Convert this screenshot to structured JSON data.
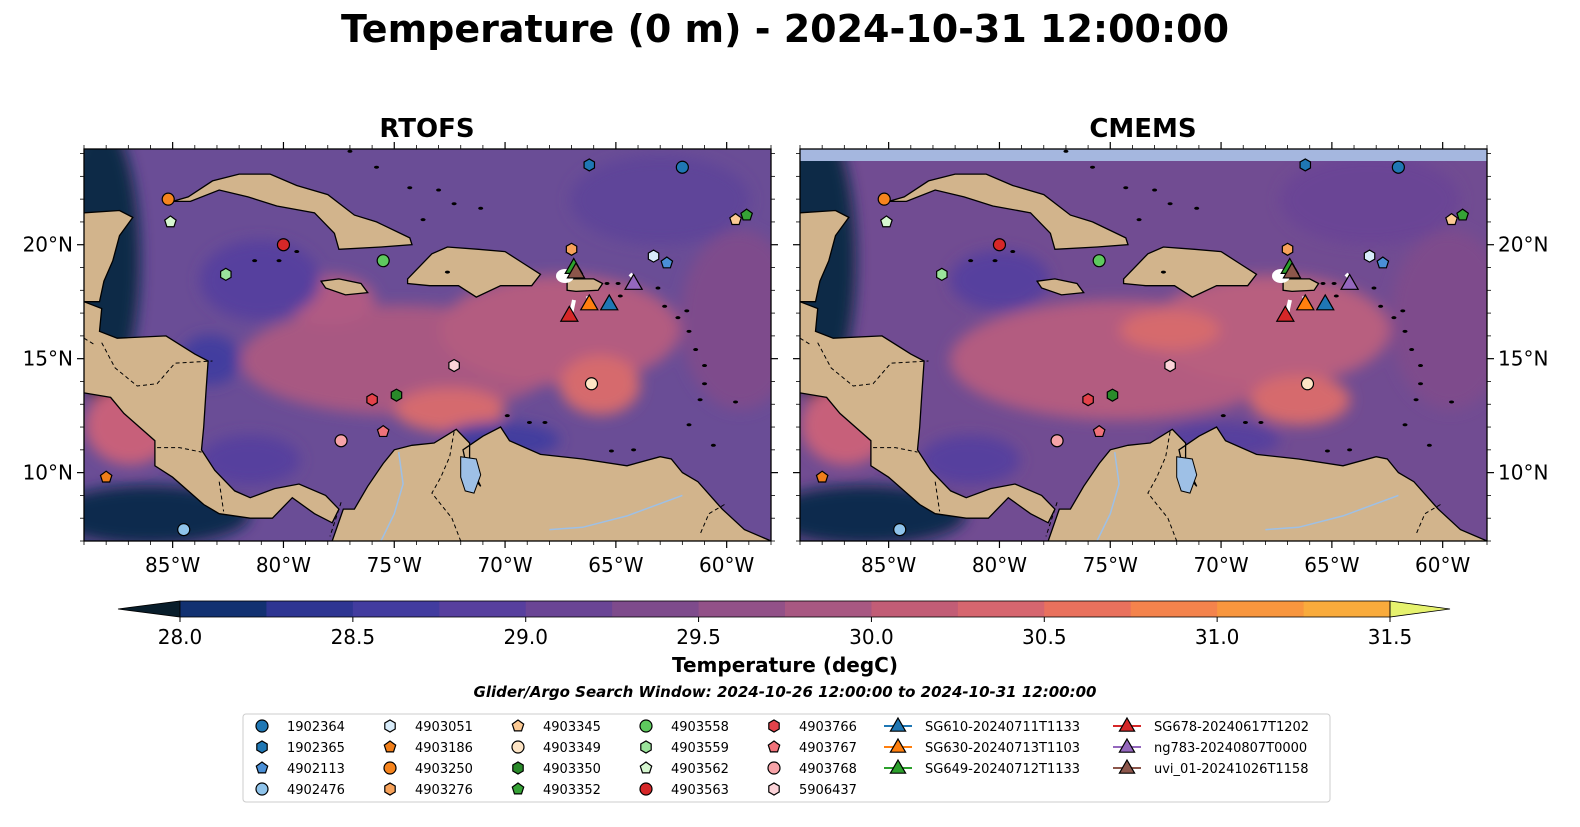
{
  "figure": {
    "title": "Temperature (0 m) - 2024-10-31 12:00:00",
    "colorbar_label": "Temperature (degC)",
    "search_window": "Glider/Argo Search Window: 2024-10-26 12:00:00 to 2024-10-31 12:00:00"
  },
  "chart_data": {
    "type": "map",
    "panels": [
      {
        "title": "RTOFS",
        "ocean_color": "#6a4d96"
      },
      {
        "title": "CMEMS",
        "ocean_color": "#714c92",
        "top_band_color": "#a5b7df"
      }
    ],
    "xlim": [
      -89,
      -58
    ],
    "ylim": [
      7,
      24.2
    ],
    "xticks": [
      -85,
      -80,
      -75,
      -70,
      -65,
      -60
    ],
    "xtick_labels": [
      "85°W",
      "80°W",
      "75°W",
      "70°W",
      "65°W",
      "60°W"
    ],
    "yticks": [
      10,
      15,
      20
    ],
    "ytick_labels": [
      "10°N",
      "15°N",
      "20°N"
    ],
    "colorbar": {
      "min": 28.0,
      "max": 31.5,
      "step": 0.25,
      "ticks": [
        28.0,
        28.5,
        29.0,
        29.5,
        30.0,
        30.5,
        31.0,
        31.5
      ],
      "tick_labels": [
        "28.0",
        "28.5",
        "29.0",
        "29.5",
        "30.0",
        "30.5",
        "31.0",
        "31.5"
      ],
      "colors": [
        "#072437",
        "#0b2d5a",
        "#123171",
        "#2e3592",
        "#423c9f",
        "#573f9e",
        "#6a4595",
        "#7e4b8c",
        "#925188",
        "#a85882",
        "#c25d76",
        "#d6666f",
        "#e9715d",
        "#f4834c",
        "#f8963e",
        "#f9ab3c",
        "#f5c748",
        "#ebe563"
      ],
      "extend_min": "#081d2b",
      "extend_max": "#e6f26e"
    },
    "land_color": "#d2b48c",
    "lake_color": "#9ec0e6",
    "floats": [
      {
        "id": "1902364",
        "marker": "circle",
        "color": "#1f77b4",
        "lon": -62.0,
        "lat": 23.4
      },
      {
        "id": "1902365",
        "marker": "hexagon",
        "color": "#1f77b4",
        "lon": -66.2,
        "lat": 23.5
      },
      {
        "id": "4902113",
        "marker": "pentagon",
        "color": "#4a8fd6",
        "lon": -62.7,
        "lat": 19.2
      },
      {
        "id": "4902476",
        "marker": "circle",
        "color": "#8fc3ea",
        "lon": -84.5,
        "lat": 7.5
      },
      {
        "id": "4903051",
        "marker": "hexagon",
        "color": "#d8ecfa",
        "lon": -63.3,
        "lat": 19.5
      },
      {
        "id": "4903186",
        "marker": "pentagon",
        "color": "#f07e19",
        "lon": -88.0,
        "lat": 9.8
      },
      {
        "id": "4903250",
        "marker": "circle",
        "color": "#f6841d",
        "lon": -85.2,
        "lat": 22.0
      },
      {
        "id": "4903276",
        "marker": "hexagon",
        "color": "#f7a25a",
        "lon": -67.0,
        "lat": 19.8
      },
      {
        "id": "4903345",
        "marker": "pentagon",
        "color": "#fcca94",
        "lon": -59.6,
        "lat": 21.1
      },
      {
        "id": "4903349",
        "marker": "circle",
        "color": "#fde4c5",
        "lon": -66.1,
        "lat": 13.9
      },
      {
        "id": "4903350",
        "marker": "hexagon",
        "color": "#2a8a2a",
        "lon": -74.9,
        "lat": 13.4
      },
      {
        "id": "4903352",
        "marker": "pentagon",
        "color": "#36a336",
        "lon": -59.1,
        "lat": 21.3
      },
      {
        "id": "4903558",
        "marker": "circle",
        "color": "#5ec95e",
        "lon": -75.5,
        "lat": 19.3
      },
      {
        "id": "4903559",
        "marker": "hexagon",
        "color": "#9be39b",
        "lon": -82.6,
        "lat": 18.7
      },
      {
        "id": "4903562",
        "marker": "pentagon",
        "color": "#d6f7d0",
        "lon": -85.1,
        "lat": 21.0
      },
      {
        "id": "4903563",
        "marker": "circle",
        "color": "#d62728",
        "lon": -80.0,
        "lat": 20.0
      },
      {
        "id": "4903766",
        "marker": "hexagon",
        "color": "#e3424a",
        "lon": -76.0,
        "lat": 13.2
      },
      {
        "id": "4903767",
        "marker": "pentagon",
        "color": "#f0727a",
        "lon": -75.5,
        "lat": 11.8
      },
      {
        "id": "4903768",
        "marker": "circle",
        "color": "#f7a3a8",
        "lon": -77.4,
        "lat": 11.4
      },
      {
        "id": "5906437",
        "marker": "hexagon",
        "color": "#fbd3d8",
        "lon": -72.3,
        "lat": 14.7
      }
    ],
    "gliders": [
      {
        "id": "SG610-20240711T1133",
        "color": "#1f77b4",
        "lon": -65.3,
        "lat": 17.4
      },
      {
        "id": "SG630-20240713T1103",
        "color": "#ff7f0e",
        "lon": -66.2,
        "lat": 17.4
      },
      {
        "id": "SG649-20240712T1133",
        "color": "#2ca02c",
        "lon": -66.9,
        "lat": 19.0
      },
      {
        "id": "SG678-20240617T1202",
        "color": "#d62728",
        "lon": -67.1,
        "lat": 16.9
      },
      {
        "id": "ng783-20240807T0000",
        "color": "#9467bd",
        "lon": -64.2,
        "lat": 18.3
      },
      {
        "id": "uvi_01-20241026T1158",
        "color": "#8c564b",
        "lon": -66.8,
        "lat": 18.8
      }
    ]
  }
}
